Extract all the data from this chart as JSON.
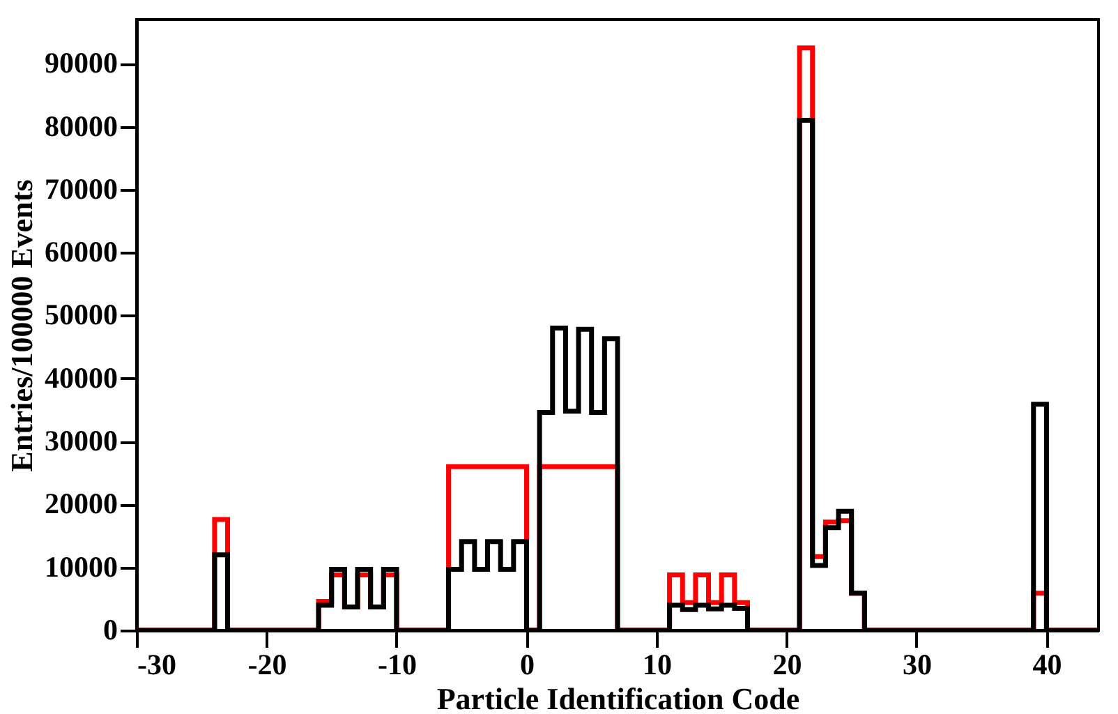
{
  "chart_data": {
    "type": "histogram",
    "xlabel": "Particle Identification Code",
    "ylabel": "Entries/100000 Events",
    "bins": [
      -30,
      -29,
      -28,
      -27,
      -26,
      -25,
      -24,
      -23,
      -22,
      -21,
      -20,
      -19,
      -18,
      -17,
      -16,
      -15,
      -14,
      -13,
      -12,
      -11,
      -10,
      -9,
      -8,
      -7,
      -6,
      -5,
      -4,
      -3,
      -2,
      -1,
      0,
      1,
      2,
      3,
      4,
      5,
      6,
      7,
      8,
      9,
      10,
      11,
      12,
      13,
      14,
      15,
      16,
      17,
      18,
      19,
      20,
      21,
      22,
      23,
      24,
      25,
      26,
      27,
      28,
      29,
      30,
      31,
      32,
      33,
      34,
      35,
      36,
      37,
      38,
      39,
      40,
      41,
      42,
      43,
      44
    ],
    "series": [
      {
        "color": "#ff0000",
        "values": [
          0,
          0,
          0,
          0,
          0,
          0,
          17600,
          0,
          0,
          0,
          0,
          0,
          0,
          0,
          4600,
          8800,
          3700,
          8800,
          3700,
          8800,
          0,
          0,
          0,
          0,
          26000,
          26000,
          26000,
          26000,
          26000,
          26000,
          0,
          26000,
          26000,
          26000,
          26000,
          26000,
          26000,
          0,
          0,
          0,
          0,
          8800,
          4400,
          8800,
          4400,
          8800,
          4400,
          0,
          0,
          0,
          0,
          92500,
          11700,
          17200,
          17400,
          5900,
          0,
          0,
          0,
          0,
          0,
          0,
          0,
          0,
          0,
          0,
          0,
          0,
          0,
          5900,
          0,
          0,
          0,
          0
        ]
      },
      {
        "color": "#000000",
        "values": [
          0,
          0,
          0,
          0,
          0,
          0,
          12000,
          0,
          0,
          0,
          0,
          0,
          0,
          0,
          4000,
          9700,
          3700,
          9700,
          3700,
          9700,
          0,
          0,
          0,
          0,
          9700,
          14100,
          9700,
          14100,
          9700,
          14100,
          0,
          34600,
          48000,
          34800,
          47800,
          34600,
          46300,
          0,
          0,
          0,
          0,
          4000,
          3300,
          4000,
          3400,
          4000,
          3500,
          0,
          0,
          0,
          0,
          81000,
          10300,
          16300,
          18900,
          5900,
          0,
          0,
          0,
          0,
          0,
          0,
          0,
          0,
          0,
          0,
          0,
          0,
          0,
          35900,
          0,
          0,
          0,
          0
        ]
      }
    ],
    "xlim": [
      -30,
      44
    ],
    "xticks": [
      -30,
      -20,
      -10,
      0,
      10,
      20,
      30,
      40
    ],
    "ylim": [
      0,
      97000
    ],
    "yticks": [
      0,
      10000,
      20000,
      30000,
      40000,
      50000,
      60000,
      70000,
      80000,
      90000
    ],
    "grid": false
  }
}
